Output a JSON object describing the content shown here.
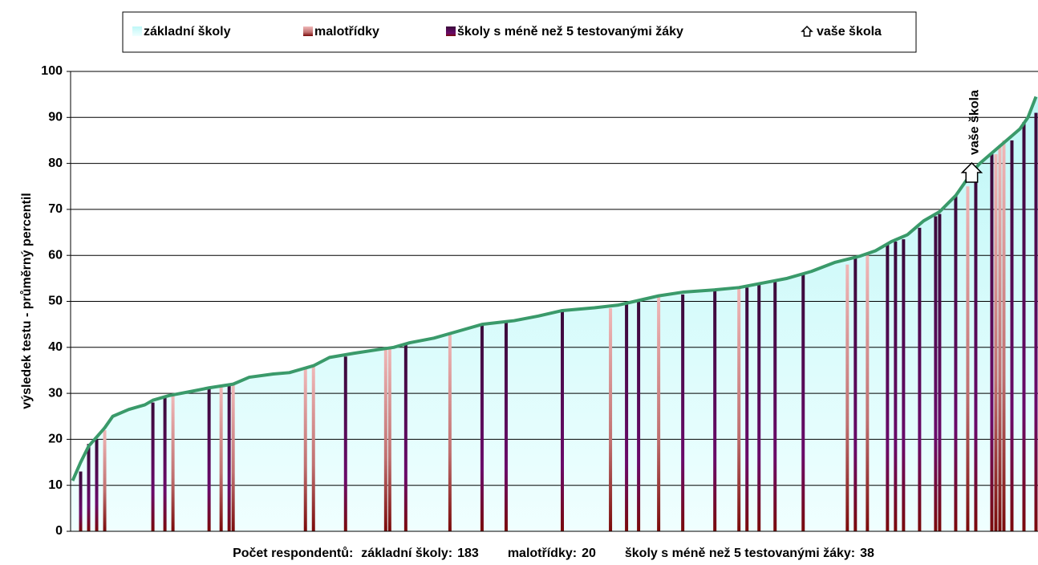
{
  "chart_data": {
    "type": "area_bars",
    "y_label": "výsledek testu - průměrný percentil",
    "ylim": [
      0,
      100
    ],
    "yticks": [
      0,
      10,
      20,
      30,
      40,
      50,
      60,
      70,
      80,
      90,
      100
    ],
    "grid": true,
    "series": [
      {
        "name": "základní školy",
        "color": "#ccffff",
        "x": [
          0,
          2,
          4,
          6,
          8,
          10,
          14,
          18,
          20,
          24,
          30,
          34,
          40,
          44,
          50,
          54,
          60,
          64,
          70,
          76,
          80,
          84,
          90,
          96,
          102,
          110,
          116,
          122,
          130,
          136,
          140,
          146,
          152,
          160,
          166,
          172,
          178,
          184,
          190,
          196,
          200,
          204,
          208,
          212,
          216,
          220,
          224,
          226,
          230,
          234,
          236,
          238,
          240
        ],
        "values": [
          11,
          15,
          18.5,
          20.5,
          22.5,
          25,
          26.5,
          27.5,
          28.5,
          29.5,
          30.5,
          31.2,
          32,
          33.5,
          34.2,
          34.5,
          36,
          37.8,
          38.7,
          39.5,
          40,
          41,
          42,
          43.5,
          45,
          45.8,
          46.8,
          48,
          48.6,
          49.2,
          50,
          51.2,
          52,
          52.5,
          53,
          54,
          55,
          56.5,
          58.5,
          59.8,
          61,
          63,
          64.5,
          67.5,
          69.5,
          73,
          78,
          80,
          83,
          86,
          87.5,
          90,
          94.5
        ]
      },
      {
        "name": "malotřídky",
        "color": "#d89090",
        "x": [
          8,
          25,
          37,
          40,
          58,
          60,
          78,
          79,
          94,
          134,
          146,
          166,
          193,
          198,
          223,
          230,
          231,
          232
        ],
        "values": [
          22,
          29.5,
          31.5,
          32,
          35.5,
          36,
          40,
          40,
          43,
          48.5,
          51,
          53,
          58,
          60,
          75,
          82,
          84,
          85
        ]
      },
      {
        "name": "školy s méně než 5 testovanými žáky",
        "color": "#4a0a4a",
        "x": [
          2,
          4,
          6,
          20,
          23,
          34,
          39,
          68,
          83,
          102,
          108,
          122,
          138,
          141,
          152,
          160,
          168,
          171,
          175,
          182,
          195,
          203,
          205,
          207,
          211,
          215,
          216,
          220,
          225,
          229,
          234,
          237,
          240
        ],
        "values": [
          13,
          19,
          20,
          28,
          29,
          31,
          32,
          38,
          41,
          45,
          45.5,
          48,
          49.5,
          50,
          51.5,
          52.5,
          53,
          54,
          54.5,
          56,
          59.5,
          62.5,
          63,
          63.5,
          66,
          68.5,
          69,
          73,
          77,
          82,
          85,
          89,
          91
        ]
      }
    ],
    "marker": {
      "name": "vaše škola",
      "x": 224,
      "value": 78
    },
    "footer": {
      "title": "Počet respondentů:",
      "counts": [
        {
          "label": "základní školy:",
          "value": 183
        },
        {
          "label": "malotřídky:",
          "value": 20
        },
        {
          "label": "školy s méně než 5 testovanými žáky:",
          "value": 38
        }
      ]
    }
  }
}
